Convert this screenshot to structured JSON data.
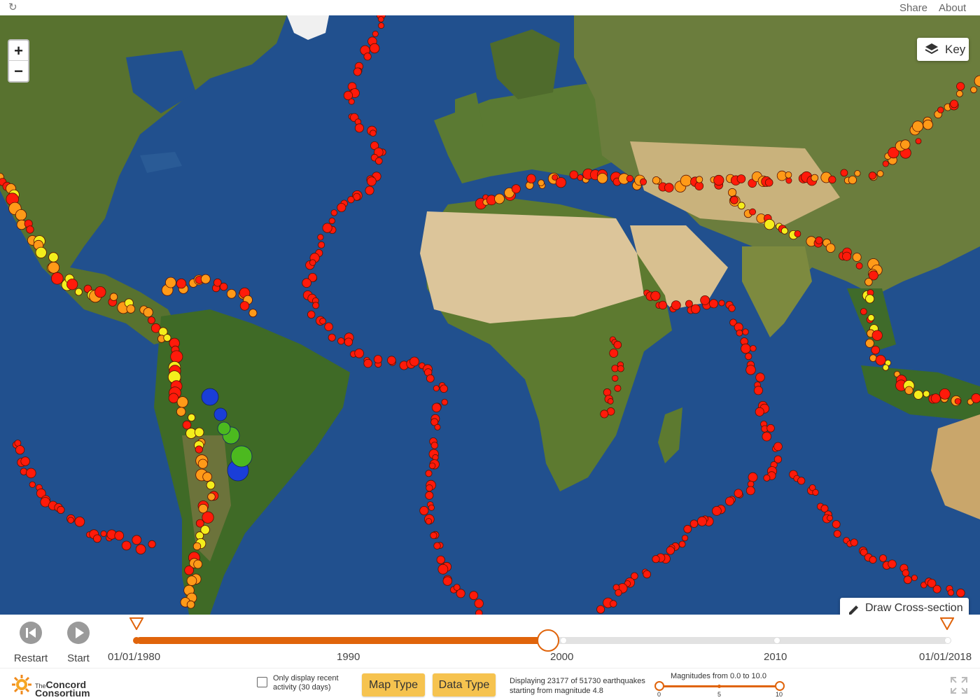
{
  "topbar": {
    "share_label": "Share",
    "about_label": "About",
    "reload_icon": "refresh-icon"
  },
  "map": {
    "zoom_in_label": "+",
    "zoom_out_label": "−",
    "key_label": "Key",
    "cross_section_label": "Draw Cross-section",
    "colors": {
      "ocean": "#1f4a86",
      "land_green": "#4f6e2f",
      "desert": "#d6bf8e",
      "ice": "#f2f2f2",
      "quake_red": "#ff1a0a",
      "quake_orange": "#ff9a18",
      "quake_yellow": "#f4ee1c",
      "quake_green": "#4cb91f",
      "quake_blue": "#1a3ed8"
    }
  },
  "timeline": {
    "restart_label": "Restart",
    "start_label": "Start",
    "start_date": "01/01/1980",
    "end_date": "01/01/2018",
    "years": [
      "1990",
      "2000",
      "2010"
    ],
    "progress_fraction": 0.507,
    "accent_color": "#e0640b"
  },
  "bottom": {
    "logo_the": "The",
    "logo_line1": "Concord",
    "logo_line2": "Consortium",
    "recent_label": "Only display recent activity (30 days)",
    "map_type_label": "Map Type",
    "data_type_label": "Data Type",
    "display_line1": "Displaying 23177 of 51730 earthquakes",
    "display_line2": "starting from magnitude 4.8",
    "magnitude_title": "Magnitudes from 0.0 to 10.0",
    "mag_ticks": [
      "0",
      "5",
      "10"
    ],
    "mag_min": 0.0,
    "mag_max": 10.0
  }
}
